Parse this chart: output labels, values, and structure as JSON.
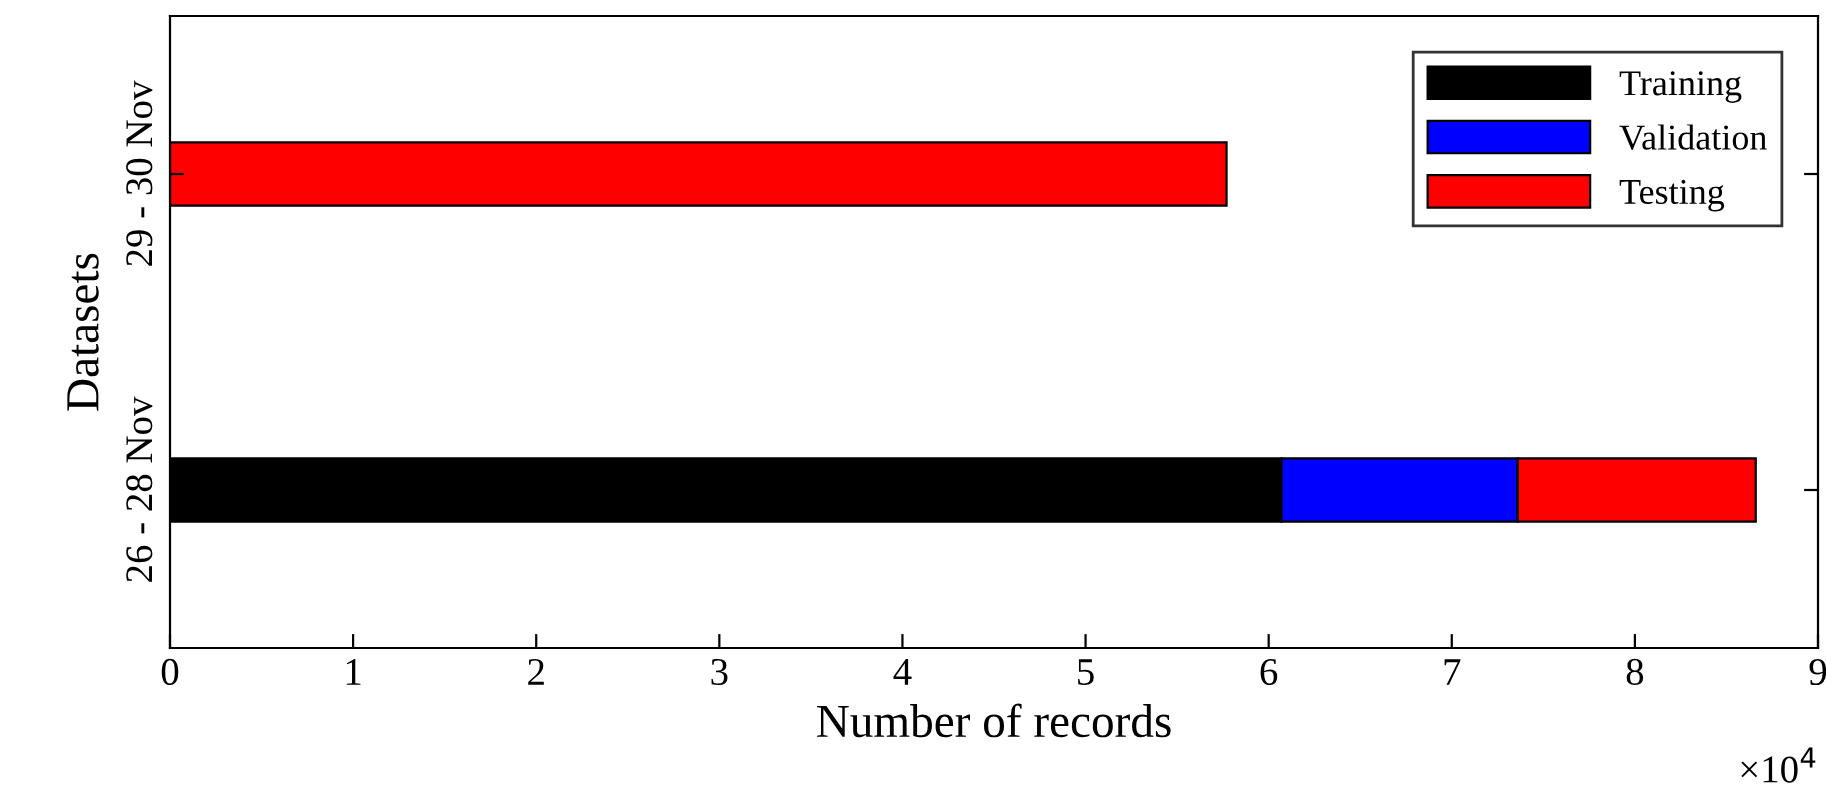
{
  "chart_data": {
    "type": "bar",
    "orientation": "horizontal",
    "stacked": true,
    "categories": [
      "29 - 30 Nov",
      "26 - 28 Nov"
    ],
    "series": [
      {
        "name": "Training",
        "color": "#000000",
        "values": [
          null,
          6.07
        ]
      },
      {
        "name": "Validation",
        "color": "#0000ff",
        "values": [
          null,
          1.29
        ]
      },
      {
        "name": "Testing",
        "color": "#ff0000",
        "values": [
          5.77,
          1.3
        ]
      }
    ],
    "xlabel": "Number of records",
    "ylabel": "Datasets",
    "xlim": [
      0,
      9
    ],
    "xticks": [
      0,
      1,
      2,
      3,
      4,
      5,
      6,
      7,
      8,
      9
    ],
    "annotations": [
      "×10$^{4}$"
    ],
    "legend": "top right",
    "grid": false
  }
}
